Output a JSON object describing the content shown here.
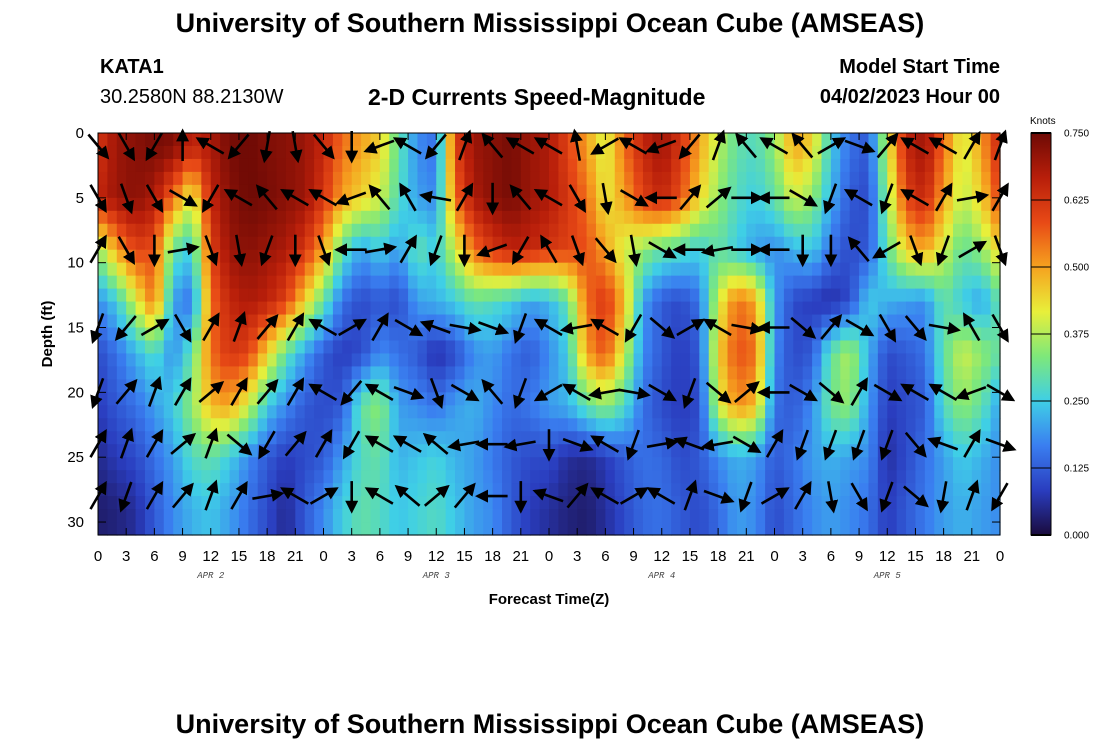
{
  "header": {
    "title": "University of Southern Mississippi Ocean Cube (AMSEAS)",
    "footer_title": "University of Southern Mississippi Ocean Cube (AMSEAS)",
    "station": "KATA1",
    "coords": "30.2580N  88.2130W",
    "subtitle": "2-D Currents Speed-Magnitude",
    "model_label": "Model Start Time",
    "model_date": "04/02/2023 Hour 00"
  },
  "chart_data": {
    "type": "heatmap",
    "title": "2-D Currents Speed-Magnitude",
    "xlabel": "Forecast Time(Z)",
    "ylabel": "Depth (ft)",
    "x_tick_labels": [
      "0",
      "3",
      "6",
      "9",
      "12",
      "15",
      "18",
      "21",
      "0",
      "3",
      "6",
      "9",
      "12",
      "15",
      "18",
      "21",
      "0",
      "3",
      "6",
      "9",
      "12",
      "15",
      "18",
      "21",
      "0",
      "3",
      "6",
      "9",
      "12",
      "15",
      "18",
      "21",
      "0"
    ],
    "x_range_hours": [
      0,
      96
    ],
    "day_labels": [
      {
        "label": "APR 2",
        "hour": 12
      },
      {
        "label": "APR 3",
        "hour": 36
      },
      {
        "label": "APR 4",
        "hour": 60
      },
      {
        "label": "APR 5",
        "hour": 84
      }
    ],
    "y_ticks": [
      0,
      5,
      10,
      15,
      20,
      25,
      30
    ],
    "ylim": [
      0,
      31
    ],
    "y_inverted": true,
    "colorbar": {
      "unit": "Knots",
      "ticks": [
        "0.000",
        "0.125",
        "0.250",
        "0.375",
        "0.500",
        "0.625",
        "0.750"
      ],
      "range": [
        0,
        0.75
      ],
      "colors": [
        "#1a0b3d",
        "#2a3dbf",
        "#3a7ef0",
        "#3fcfe6",
        "#7ee87a",
        "#e8ef3a",
        "#f6a21f",
        "#e84a16",
        "#b81e0a",
        "#6e0a05"
      ]
    },
    "grid": false,
    "depths_ft": [
      1,
      5,
      9,
      13,
      17,
      21,
      25,
      29
    ],
    "hours": [
      0,
      2,
      4,
      6,
      8,
      10,
      12,
      14,
      16,
      18,
      20,
      22,
      24,
      26,
      28,
      30,
      32,
      34,
      36,
      38,
      40,
      42,
      44,
      46,
      48,
      50,
      52,
      54,
      56,
      58,
      60,
      62,
      64,
      66,
      68,
      70,
      72,
      74,
      76,
      78,
      80,
      82,
      84,
      86,
      88,
      90,
      92,
      94,
      96
    ],
    "speed_knots": [
      [
        0.62,
        0.7,
        0.72,
        0.74,
        0.73,
        0.65,
        0.68,
        0.74,
        0.75,
        0.73,
        0.72,
        0.7,
        0.65,
        0.55,
        0.5,
        0.45,
        0.3,
        0.18,
        0.15,
        0.6,
        0.7,
        0.72,
        0.74,
        0.7,
        0.68,
        0.6,
        0.5,
        0.4,
        0.55,
        0.65,
        0.7,
        0.62,
        0.5,
        0.38,
        0.3,
        0.28,
        0.35,
        0.5,
        0.45,
        0.25,
        0.15,
        0.12,
        0.4,
        0.65,
        0.7,
        0.55,
        0.4,
        0.5,
        0.65
      ],
      [
        0.65,
        0.7,
        0.72,
        0.68,
        0.55,
        0.4,
        0.65,
        0.72,
        0.75,
        0.74,
        0.72,
        0.7,
        0.62,
        0.5,
        0.45,
        0.4,
        0.28,
        0.2,
        0.18,
        0.55,
        0.68,
        0.72,
        0.74,
        0.7,
        0.68,
        0.62,
        0.55,
        0.42,
        0.5,
        0.6,
        0.65,
        0.58,
        0.45,
        0.35,
        0.28,
        0.25,
        0.3,
        0.4,
        0.35,
        0.22,
        0.12,
        0.1,
        0.35,
        0.6,
        0.65,
        0.5,
        0.38,
        0.45,
        0.6
      ],
      [
        0.35,
        0.5,
        0.6,
        0.58,
        0.3,
        0.25,
        0.6,
        0.7,
        0.72,
        0.7,
        0.68,
        0.62,
        0.5,
        0.3,
        0.2,
        0.25,
        0.2,
        0.3,
        0.25,
        0.4,
        0.55,
        0.62,
        0.66,
        0.65,
        0.62,
        0.6,
        0.58,
        0.5,
        0.4,
        0.35,
        0.3,
        0.28,
        0.25,
        0.3,
        0.25,
        0.2,
        0.18,
        0.22,
        0.25,
        0.15,
        0.1,
        0.12,
        0.3,
        0.45,
        0.5,
        0.4,
        0.3,
        0.35,
        0.45
      ],
      [
        0.18,
        0.25,
        0.4,
        0.55,
        0.2,
        0.15,
        0.55,
        0.65,
        0.68,
        0.66,
        0.6,
        0.45,
        0.3,
        0.15,
        0.1,
        0.12,
        0.1,
        0.2,
        0.22,
        0.25,
        0.3,
        0.28,
        0.25,
        0.2,
        0.22,
        0.3,
        0.55,
        0.62,
        0.48,
        0.2,
        0.12,
        0.1,
        0.15,
        0.4,
        0.55,
        0.5,
        0.2,
        0.1,
        0.08,
        0.06,
        0.1,
        0.25,
        0.22,
        0.2,
        0.18,
        0.3,
        0.25,
        0.2,
        0.3
      ],
      [
        0.1,
        0.15,
        0.22,
        0.28,
        0.18,
        0.3,
        0.55,
        0.62,
        0.6,
        0.45,
        0.3,
        0.2,
        0.12,
        0.08,
        0.1,
        0.18,
        0.15,
        0.12,
        0.06,
        0.1,
        0.18,
        0.2,
        0.15,
        0.12,
        0.18,
        0.25,
        0.5,
        0.58,
        0.4,
        0.18,
        0.12,
        0.08,
        0.12,
        0.45,
        0.58,
        0.55,
        0.18,
        0.1,
        0.12,
        0.3,
        0.38,
        0.22,
        0.1,
        0.12,
        0.15,
        0.3,
        0.4,
        0.35,
        0.3
      ],
      [
        0.08,
        0.12,
        0.15,
        0.2,
        0.25,
        0.35,
        0.48,
        0.5,
        0.4,
        0.25,
        0.18,
        0.12,
        0.1,
        0.12,
        0.3,
        0.35,
        0.2,
        0.18,
        0.15,
        0.2,
        0.22,
        0.18,
        0.14,
        0.16,
        0.2,
        0.22,
        0.3,
        0.35,
        0.28,
        0.15,
        0.1,
        0.08,
        0.1,
        0.4,
        0.52,
        0.48,
        0.15,
        0.12,
        0.18,
        0.32,
        0.35,
        0.2,
        0.08,
        0.1,
        0.12,
        0.28,
        0.35,
        0.3,
        0.2
      ],
      [
        0.05,
        0.08,
        0.1,
        0.15,
        0.2,
        0.28,
        0.3,
        0.25,
        0.18,
        0.12,
        0.08,
        0.1,
        0.12,
        0.2,
        0.28,
        0.3,
        0.22,
        0.24,
        0.26,
        0.22,
        0.2,
        0.16,
        0.12,
        0.1,
        0.1,
        0.06,
        0.05,
        0.08,
        0.12,
        0.15,
        0.14,
        0.1,
        0.12,
        0.18,
        0.22,
        0.2,
        0.12,
        0.15,
        0.2,
        0.22,
        0.2,
        0.18,
        0.06,
        0.1,
        0.15,
        0.2,
        0.25,
        0.22,
        0.18
      ],
      [
        0.03,
        0.04,
        0.06,
        0.12,
        0.18,
        0.22,
        0.24,
        0.2,
        0.15,
        0.1,
        0.05,
        0.12,
        0.18,
        0.25,
        0.3,
        0.28,
        0.24,
        0.26,
        0.28,
        0.24,
        0.2,
        0.18,
        0.12,
        0.08,
        0.06,
        0.04,
        0.03,
        0.06,
        0.1,
        0.14,
        0.15,
        0.12,
        0.1,
        0.14,
        0.2,
        0.18,
        0.1,
        0.14,
        0.18,
        0.2,
        0.18,
        0.15,
        0.08,
        0.12,
        0.16,
        0.2,
        0.22,
        0.2,
        0.18
      ]
    ],
    "vector_depths_ft": [
      1,
      5,
      9,
      15,
      20,
      24,
      28
    ],
    "vector_hours": [
      0,
      3,
      6,
      9,
      12,
      15,
      18,
      21,
      24,
      27,
      30,
      33,
      36,
      39,
      42,
      45,
      48,
      51,
      54,
      57,
      60,
      63,
      66,
      69,
      72,
      75,
      78,
      81,
      84,
      87,
      90,
      93,
      96
    ],
    "vector_dir_deg": [
      [
        140,
        150,
        210,
        0,
        300,
        220,
        190,
        170,
        140,
        180,
        250,
        300,
        220,
        20,
        320,
        300,
        300,
        350,
        240,
        300,
        250,
        220,
        20,
        320,
        300,
        320,
        60,
        110,
        40,
        300,
        300,
        30,
        20
      ],
      [
        150,
        160,
        150,
        120,
        210,
        300,
        320,
        300,
        300,
        250,
        320,
        330,
        280,
        30,
        180,
        320,
        300,
        150,
        170,
        120,
        270,
        40,
        50,
        90,
        270,
        120,
        200,
        300,
        200,
        300,
        30,
        80,
        30
      ],
      [
        30,
        150,
        180,
        80,
        160,
        170,
        200,
        180,
        160,
        270,
        80,
        30,
        200,
        180,
        250,
        210,
        330,
        160,
        140,
        170,
        120,
        270,
        260,
        90,
        270,
        180,
        180,
        320,
        240,
        160,
        200,
        60,
        160
      ],
      [
        200,
        220,
        60,
        150,
        30,
        20,
        40,
        30,
        300,
        60,
        30,
        120,
        290,
        100,
        110,
        200,
        300,
        260,
        300,
        210,
        130,
        60,
        300,
        100,
        270,
        130,
        40,
        120,
        150,
        140,
        100,
        330,
        150
      ],
      [
        200,
        40,
        20,
        30,
        50,
        30,
        40,
        30,
        300,
        220,
        300,
        110,
        160,
        120,
        320,
        200,
        240,
        300,
        260,
        100,
        120,
        200,
        130,
        50,
        270,
        120,
        130,
        30,
        120,
        300,
        300,
        250,
        120
      ],
      [
        30,
        20,
        30,
        50,
        20,
        130,
        210,
        40,
        30,
        210,
        300,
        300,
        310,
        260,
        270,
        260,
        180,
        110,
        300,
        200,
        80,
        290,
        260,
        120,
        30,
        200,
        200,
        200,
        200,
        140,
        290,
        30,
        110
      ],
      [
        30,
        200,
        30,
        40,
        20,
        30,
        80,
        300,
        60,
        180,
        300,
        310,
        50,
        40,
        270,
        180,
        290,
        40,
        300,
        60,
        300,
        20,
        110,
        200,
        60,
        30,
        170,
        150,
        200,
        130,
        190,
        20,
        210
      ]
    ]
  }
}
